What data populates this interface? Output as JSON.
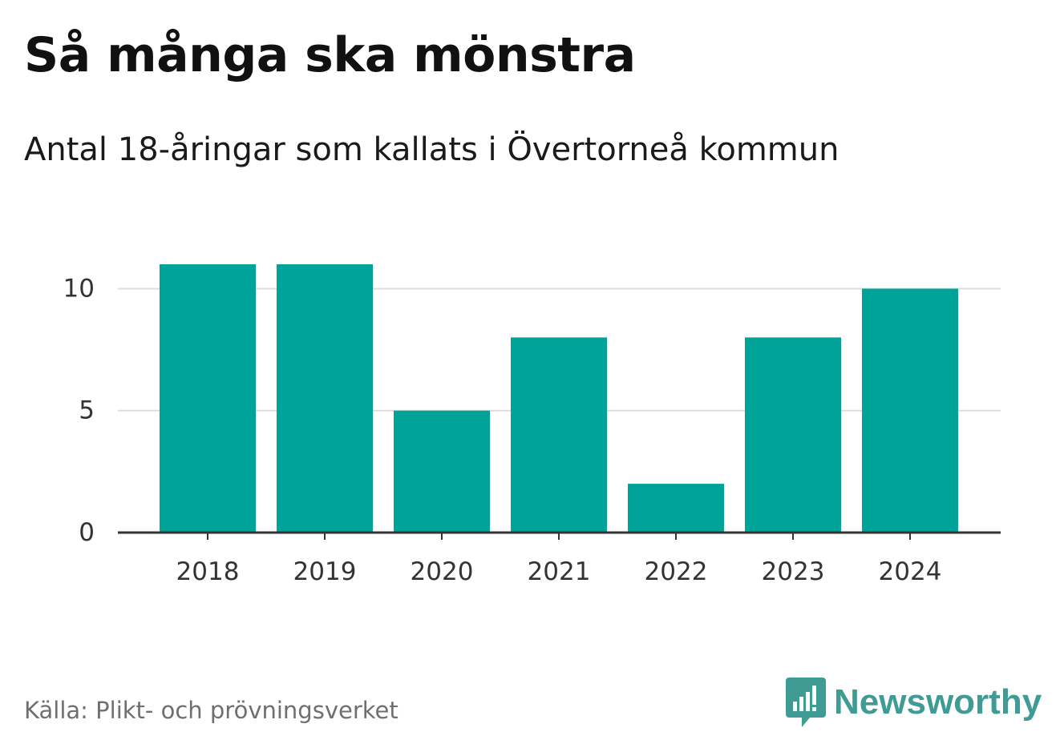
{
  "title": "Så många ska mönstra",
  "subtitle": "Antal 18-åringar som kallats i Övertorneå kommun",
  "source": "Källa: Plikt- och prövningsverket",
  "brand": {
    "name": "Newsworthy",
    "icon": "newsworthy-logo-icon",
    "color": "#3e9c94"
  },
  "colors": {
    "bar": "#00a398",
    "grid": "#dddddd",
    "axis": "#333333",
    "tick_label": "#333333"
  },
  "chart_data": {
    "type": "bar",
    "categories": [
      "2018",
      "2019",
      "2020",
      "2021",
      "2022",
      "2023",
      "2024"
    ],
    "values": [
      11,
      11,
      5,
      8,
      2,
      8,
      10
    ],
    "yticks": [
      0,
      5,
      10
    ],
    "ylim": [
      0,
      11
    ],
    "xlabel": "",
    "ylabel": "",
    "grid": true,
    "legend": "none"
  }
}
